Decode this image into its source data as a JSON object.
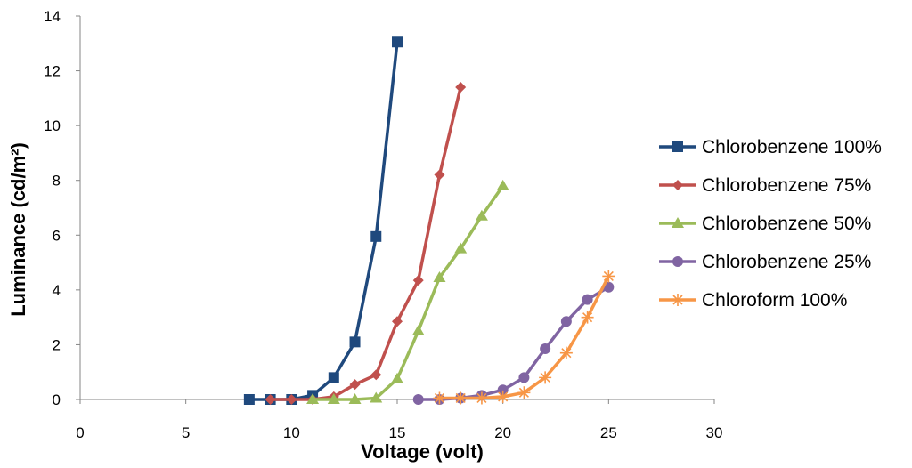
{
  "chart_data": {
    "type": "line",
    "title": "",
    "xlabel": "Voltage (volt)",
    "ylabel": "Luminance (cd/m²)",
    "xlim": [
      0,
      30
    ],
    "ylim": [
      0,
      14
    ],
    "xticks": [
      0,
      5,
      10,
      15,
      20,
      25,
      30
    ],
    "yticks": [
      0,
      2,
      4,
      6,
      8,
      10,
      12,
      14
    ],
    "grid": false,
    "legend_position": "right",
    "series": [
      {
        "name": "Chlorobenzene 100%",
        "color": "#1F497D",
        "marker": "square",
        "x": [
          8,
          9,
          10,
          11,
          12,
          13,
          14,
          15
        ],
        "y": [
          0,
          0,
          0,
          0.15,
          0.8,
          2.1,
          5.95,
          13.05
        ]
      },
      {
        "name": "Chlorobenzene 75%",
        "color": "#C0504D",
        "marker": "diamond",
        "x": [
          9,
          10,
          11,
          12,
          13,
          14,
          15,
          16,
          17,
          18
        ],
        "y": [
          0,
          0,
          0,
          0.1,
          0.55,
          0.9,
          2.85,
          4.35,
          8.2,
          11.4
        ]
      },
      {
        "name": "Chlorobenzene 50%",
        "color": "#9BBB59",
        "marker": "triangle",
        "x": [
          11,
          12,
          13,
          14,
          15,
          16,
          17,
          18,
          19,
          20
        ],
        "y": [
          0,
          0,
          0,
          0.05,
          0.75,
          2.5,
          4.45,
          5.5,
          6.7,
          7.8
        ]
      },
      {
        "name": "Chlorobenzene 25%",
        "color": "#8064A2",
        "marker": "circle",
        "x": [
          16,
          17,
          18,
          19,
          20,
          21,
          22,
          23,
          24,
          25
        ],
        "y": [
          0,
          0,
          0.05,
          0.15,
          0.35,
          0.8,
          1.85,
          2.85,
          3.65,
          4.1
        ]
      },
      {
        "name": "Chloroform 100%",
        "color": "#F79646",
        "marker": "star",
        "x": [
          17,
          18,
          19,
          20,
          21,
          22,
          23,
          24,
          25
        ],
        "y": [
          0.05,
          0.05,
          0.05,
          0.1,
          0.25,
          0.8,
          1.7,
          3.0,
          4.5
        ]
      }
    ]
  }
}
